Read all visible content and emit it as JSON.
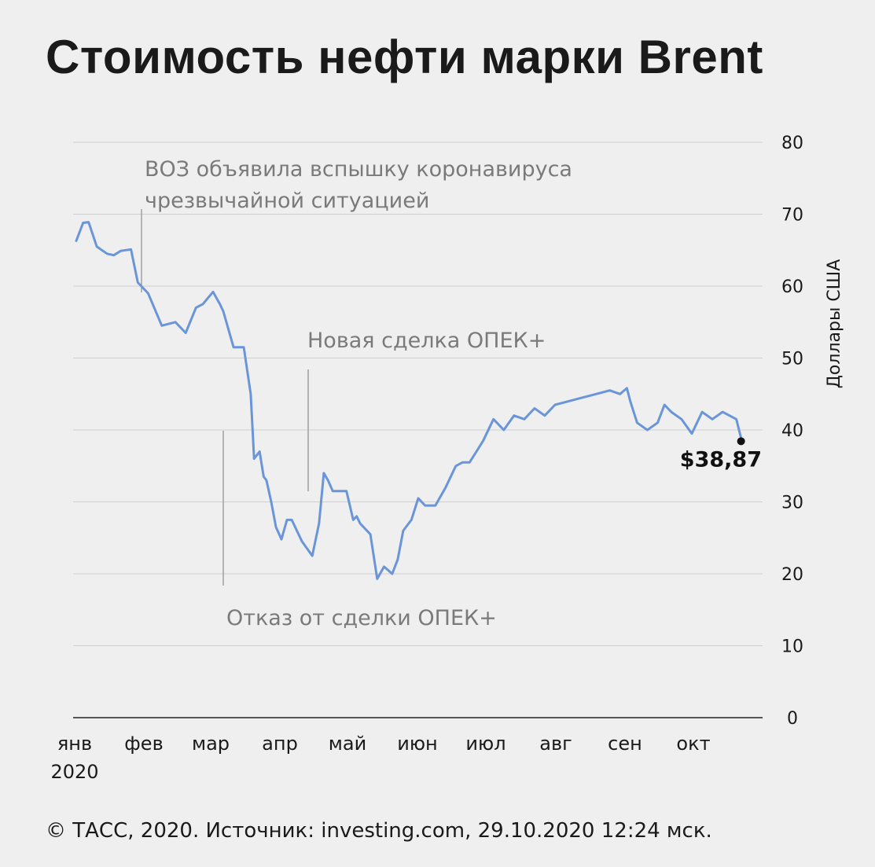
{
  "title": "Стоимость нефти марки Brent",
  "footer": "© ТАСС, 2020. Источник: investing.com, 29.10.2020 12:24 мск.",
  "chart_data": {
    "type": "line",
    "title": "Стоимость нефти марки Brent",
    "ylabel": "Доллары США",
    "ylim": [
      0,
      80
    ],
    "yticks": [
      0,
      10,
      20,
      30,
      40,
      50,
      60,
      70,
      80
    ],
    "y_axis_position": "right",
    "grid": true,
    "line_color": "#6a95d8",
    "month_labels": [
      "янв",
      "фев",
      "мар",
      "апр",
      "май",
      "июн",
      "июл",
      "авг",
      "сен",
      "окт"
    ],
    "year_label": "2020",
    "series": [
      {
        "x": [
          0.0,
          0.1,
          0.18,
          0.3,
          0.45,
          0.55,
          0.65,
          0.8,
          0.9,
          1.05,
          1.25,
          1.45,
          1.6,
          1.75,
          1.85,
          2.0,
          2.1,
          2.15,
          2.3,
          2.45,
          2.55,
          2.6,
          2.68,
          2.74,
          2.78,
          2.85,
          2.92,
          3.0,
          3.08,
          3.15,
          3.3,
          3.45,
          3.55,
          3.62,
          3.68,
          3.75,
          3.85,
          3.95,
          4.05,
          4.1,
          4.15,
          4.3,
          4.4,
          4.5,
          4.62,
          4.7,
          4.78,
          4.9,
          5.0,
          5.1,
          5.25,
          5.4,
          5.55,
          5.65,
          5.75,
          5.85,
          5.95,
          6.1,
          6.25,
          6.4,
          6.55,
          6.7,
          6.85,
          7.0,
          7.2,
          7.4,
          7.6,
          7.8,
          7.95,
          8.05,
          8.1,
          8.2,
          8.35,
          8.5,
          8.6,
          8.7,
          8.85,
          9.0,
          9.15,
          9.3,
          9.45,
          9.55,
          9.65,
          9.72
        ],
        "y": [
          66.3,
          68.8,
          68.9,
          65.5,
          64.5,
          64.3,
          64.9,
          65.1,
          60.5,
          59.0,
          54.5,
          55.0,
          53.5,
          57.0,
          57.5,
          59.2,
          57.5,
          56.5,
          51.5,
          51.5,
          45.0,
          36.0,
          37.0,
          33.5,
          33.0,
          30.0,
          26.5,
          24.8,
          27.5,
          27.5,
          24.5,
          22.5,
          27.0,
          34.0,
          33.0,
          31.5,
          31.5,
          31.5,
          27.5,
          28.0,
          27.0,
          25.5,
          19.3,
          21.0,
          20.0,
          22.0,
          26.0,
          27.5,
          30.5,
          29.5,
          29.5,
          32.0,
          35.0,
          35.5,
          35.5,
          37.0,
          38.5,
          41.5,
          40.0,
          42.0,
          41.5,
          43.0,
          42.0,
          43.5,
          44.0,
          44.5,
          45.0,
          45.5,
          45.0,
          45.8,
          44.0,
          41.0,
          40.0,
          41.0,
          43.5,
          42.5,
          41.5,
          39.5,
          42.5,
          41.5,
          42.5,
          42.0,
          41.5,
          38.87
        ]
      }
    ],
    "annotations": [
      {
        "text": "ВОЗ объявила вспышку коронавируса чрезвычайной ситуацией",
        "lines": [
          "ВОЗ объявила вспышку коронавируса",
          "чрезвычайной ситуацией"
        ],
        "x": 0.95
      },
      {
        "text": "Отказ от сделки ОПЕК+",
        "x": 2.19
      },
      {
        "text": "Новая сделка ОПЕК+",
        "x": 3.48
      }
    ],
    "end_label": "$38,87",
    "end_value": 38.87
  }
}
